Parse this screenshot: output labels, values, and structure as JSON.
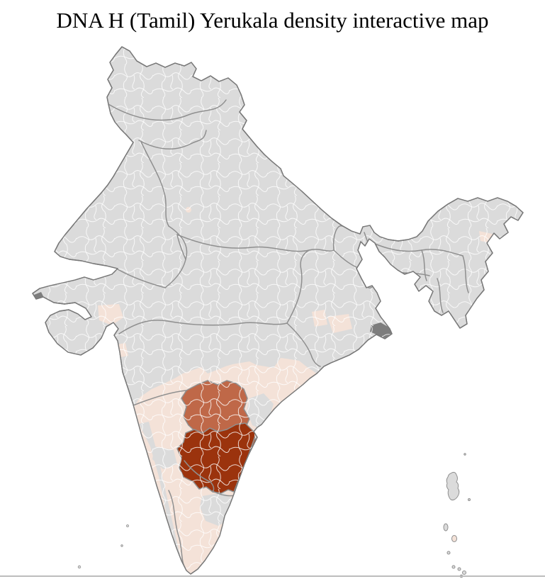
{
  "title": "DNA H (Tamil) Yerukala density interactive map",
  "map": {
    "region": "India",
    "unit": "districts",
    "colors": {
      "background": "#ffffff",
      "district_base": "#dbdbdb",
      "district_border": "#ffffff",
      "state_border": "#8f8f8f",
      "country_outline": "#787878",
      "density_low": "#f4e2d8",
      "density_medium": "#bf6848",
      "density_high": "#9b330d",
      "delta_marsh": "#7d7d7d",
      "divider": "#bdbdbd"
    },
    "density_scale": [
      {
        "level": "none",
        "color": "#dbdbdb"
      },
      {
        "level": "low",
        "color": "#f4e2d8"
      },
      {
        "level": "medium",
        "color": "#bf6848"
      },
      {
        "level": "high",
        "color": "#9b330d"
      }
    ]
  }
}
